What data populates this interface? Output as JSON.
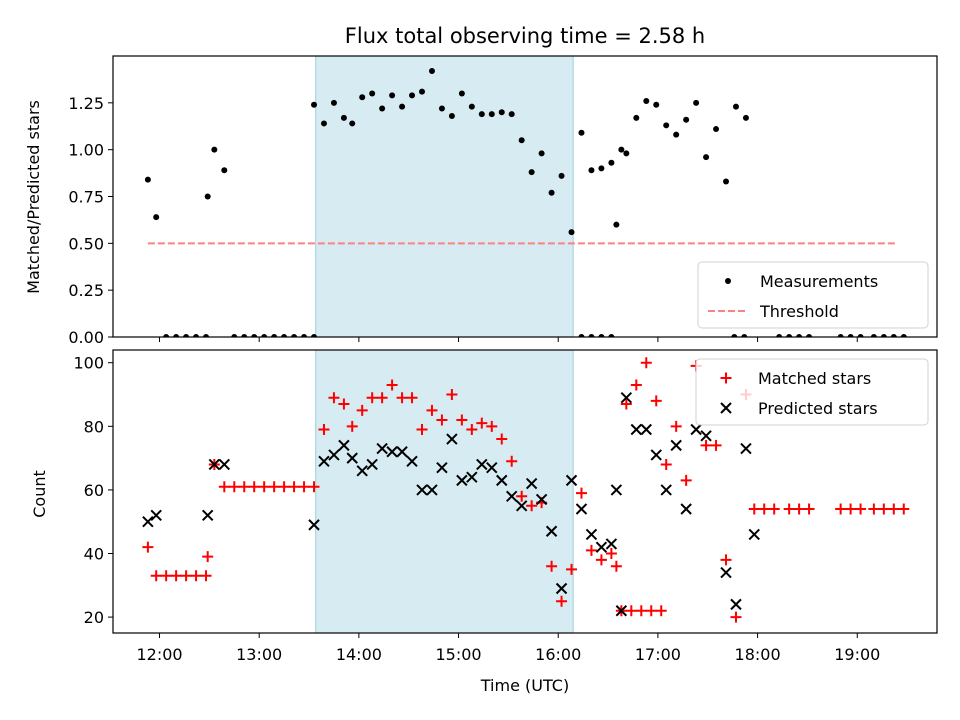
{
  "chart_data": [
    {
      "type": "scatter",
      "title": "Flux total observing time = 2.58 h",
      "xlabel": "",
      "ylabel": "Matched/Predicted stars",
      "ylim": [
        0,
        1.5
      ],
      "yticks": [
        "0.00",
        "0.25",
        "0.50",
        "0.75",
        "1.00",
        "1.25"
      ],
      "xlim": [
        "11:32",
        "19:48"
      ],
      "shaded_region": {
        "start": "13:34",
        "end": "16:09"
      },
      "legend_position": "bottom-right",
      "threshold": {
        "name": "Threshold",
        "value": 0.5,
        "x_start": "11:53",
        "x_end": "19:24",
        "color": "#ff8080",
        "style": "dashed"
      },
      "series": [
        {
          "name": "Measurements",
          "color": "#000000",
          "marker": "dot",
          "points": [
            [
              "11:53",
              0.84
            ],
            [
              "11:58",
              0.64
            ],
            [
              "12:04",
              0
            ],
            [
              "12:10",
              0
            ],
            [
              "12:16",
              0
            ],
            [
              "12:22",
              0
            ],
            [
              "12:28",
              0
            ],
            [
              "12:29",
              0.75
            ],
            [
              "12:33",
              1.0
            ],
            [
              "12:39",
              0.89
            ],
            [
              "12:45",
              0
            ],
            [
              "12:51",
              0
            ],
            [
              "12:57",
              0
            ],
            [
              "13:03",
              0
            ],
            [
              "13:09",
              0
            ],
            [
              "13:15",
              0
            ],
            [
              "13:21",
              0
            ],
            [
              "13:27",
              0
            ],
            [
              "13:33",
              0
            ],
            [
              "13:33",
              1.24
            ],
            [
              "13:39",
              1.14
            ],
            [
              "13:45",
              1.25
            ],
            [
              "13:51",
              1.17
            ],
            [
              "13:56",
              1.14
            ],
            [
              "14:02",
              1.28
            ],
            [
              "14:08",
              1.3
            ],
            [
              "14:14",
              1.22
            ],
            [
              "14:20",
              1.29
            ],
            [
              "14:26",
              1.23
            ],
            [
              "14:32",
              1.29
            ],
            [
              "14:38",
              1.31
            ],
            [
              "14:44",
              1.42
            ],
            [
              "14:50",
              1.22
            ],
            [
              "14:56",
              1.18
            ],
            [
              "15:02",
              1.3
            ],
            [
              "15:08",
              1.23
            ],
            [
              "15:14",
              1.19
            ],
            [
              "15:20",
              1.19
            ],
            [
              "15:26",
              1.2
            ],
            [
              "15:32",
              1.19
            ],
            [
              "15:38",
              1.05
            ],
            [
              "15:44",
              0.88
            ],
            [
              "15:50",
              0.98
            ],
            [
              "15:56",
              0.77
            ],
            [
              "16:02",
              0.86
            ],
            [
              "16:08",
              0.56
            ],
            [
              "16:14",
              1.09
            ],
            [
              "16:20",
              0.89
            ],
            [
              "16:26",
              0.9
            ],
            [
              "16:32",
              0.93
            ],
            [
              "16:38",
              1.0
            ],
            [
              "16:14",
              0
            ],
            [
              "16:20",
              0
            ],
            [
              "16:26",
              0
            ],
            [
              "16:32",
              0
            ],
            [
              "16:35",
              0.6
            ],
            [
              "16:41",
              0.98
            ],
            [
              "16:47",
              1.17
            ],
            [
              "16:53",
              1.26
            ],
            [
              "16:59",
              1.24
            ],
            [
              "17:05",
              1.13
            ],
            [
              "17:11",
              1.08
            ],
            [
              "17:17",
              1.16
            ],
            [
              "17:23",
              1.25
            ],
            [
              "17:29",
              0.96
            ],
            [
              "17:35",
              1.11
            ],
            [
              "17:41",
              0.83
            ],
            [
              "17:47",
              1.23
            ],
            [
              "17:53",
              1.17
            ],
            [
              "17:46",
              0
            ],
            [
              "17:52",
              0
            ],
            [
              "18:13",
              0
            ],
            [
              "18:19",
              0
            ],
            [
              "18:25",
              0
            ],
            [
              "18:31",
              0
            ],
            [
              "18:50",
              0
            ],
            [
              "18:56",
              0
            ],
            [
              "19:02",
              0
            ],
            [
              "19:10",
              0
            ],
            [
              "19:16",
              0
            ],
            [
              "19:22",
              0
            ],
            [
              "19:28",
              0
            ]
          ]
        }
      ]
    },
    {
      "type": "scatter",
      "title": "",
      "xlabel": "Time (UTC)",
      "ylabel": "Count",
      "ylim": [
        15,
        104
      ],
      "yticks": [
        "20",
        "40",
        "60",
        "80",
        "100"
      ],
      "xlim": [
        "11:32",
        "19:48"
      ],
      "xticks": [
        "12:00",
        "13:00",
        "14:00",
        "15:00",
        "16:00",
        "17:00",
        "18:00",
        "19:00"
      ],
      "shaded_region": {
        "start": "13:34",
        "end": "16:09"
      },
      "legend_position": "top-right",
      "series": [
        {
          "name": "Matched stars",
          "color": "#ff0000",
          "marker": "plus",
          "points": [
            [
              "11:53",
              42
            ],
            [
              "11:58",
              33
            ],
            [
              "12:04",
              33
            ],
            [
              "12:10",
              33
            ],
            [
              "12:16",
              33
            ],
            [
              "12:22",
              33
            ],
            [
              "12:28",
              33
            ],
            [
              "12:29",
              39
            ],
            [
              "12:33",
              68
            ],
            [
              "12:39",
              61
            ],
            [
              "12:45",
              61
            ],
            [
              "12:51",
              61
            ],
            [
              "12:57",
              61
            ],
            [
              "13:03",
              61
            ],
            [
              "13:09",
              61
            ],
            [
              "13:15",
              61
            ],
            [
              "13:21",
              61
            ],
            [
              "13:27",
              61
            ],
            [
              "13:33",
              61
            ],
            [
              "13:39",
              79
            ],
            [
              "13:45",
              89
            ],
            [
              "13:51",
              87
            ],
            [
              "13:56",
              80
            ],
            [
              "14:02",
              85
            ],
            [
              "14:08",
              89
            ],
            [
              "14:14",
              89
            ],
            [
              "14:20",
              93
            ],
            [
              "14:26",
              89
            ],
            [
              "14:32",
              89
            ],
            [
              "14:38",
              79
            ],
            [
              "14:44",
              85
            ],
            [
              "14:50",
              82
            ],
            [
              "14:56",
              90
            ],
            [
              "15:02",
              82
            ],
            [
              "15:08",
              79
            ],
            [
              "15:14",
              81
            ],
            [
              "15:20",
              80
            ],
            [
              "15:26",
              76
            ],
            [
              "15:32",
              69
            ],
            [
              "15:38",
              58
            ],
            [
              "15:44",
              55
            ],
            [
              "15:50",
              56
            ],
            [
              "15:56",
              36
            ],
            [
              "16:02",
              25
            ],
            [
              "16:08",
              35
            ],
            [
              "16:14",
              59
            ],
            [
              "16:20",
              41
            ],
            [
              "16:26",
              38
            ],
            [
              "16:32",
              40
            ],
            [
              "16:38",
              22
            ],
            [
              "16:44",
              22
            ],
            [
              "16:50",
              22
            ],
            [
              "16:56",
              22
            ],
            [
              "17:02",
              22
            ],
            [
              "16:35",
              36
            ],
            [
              "16:41",
              87
            ],
            [
              "16:47",
              93
            ],
            [
              "16:53",
              100
            ],
            [
              "16:59",
              88
            ],
            [
              "17:05",
              68
            ],
            [
              "17:11",
              80
            ],
            [
              "17:17",
              63
            ],
            [
              "17:23",
              99
            ],
            [
              "17:29",
              74
            ],
            [
              "17:35",
              74
            ],
            [
              "17:41",
              38
            ],
            [
              "17:47",
              20
            ],
            [
              "17:53",
              90
            ],
            [
              "17:58",
              54
            ],
            [
              "18:04",
              54
            ],
            [
              "18:10",
              54
            ],
            [
              "18:19",
              54
            ],
            [
              "18:25",
              54
            ],
            [
              "18:31",
              54
            ],
            [
              "18:50",
              54
            ],
            [
              "18:56",
              54
            ],
            [
              "19:02",
              54
            ],
            [
              "19:10",
              54
            ],
            [
              "19:16",
              54
            ],
            [
              "19:22",
              54
            ],
            [
              "19:28",
              54
            ]
          ]
        },
        {
          "name": "Predicted stars",
          "color": "#000000",
          "marker": "x",
          "points": [
            [
              "11:53",
              50
            ],
            [
              "11:58",
              52
            ],
            [
              "12:29",
              52
            ],
            [
              "12:33",
              68
            ],
            [
              "12:39",
              68
            ],
            [
              "13:33",
              49
            ],
            [
              "13:39",
              69
            ],
            [
              "13:45",
              71
            ],
            [
              "13:51",
              74
            ],
            [
              "13:56",
              70
            ],
            [
              "14:02",
              66
            ],
            [
              "14:08",
              68
            ],
            [
              "14:14",
              73
            ],
            [
              "14:20",
              72
            ],
            [
              "14:26",
              72
            ],
            [
              "14:32",
              69
            ],
            [
              "14:38",
              60
            ],
            [
              "14:44",
              60
            ],
            [
              "14:50",
              67
            ],
            [
              "14:56",
              76
            ],
            [
              "15:02",
              63
            ],
            [
              "15:08",
              64
            ],
            [
              "15:14",
              68
            ],
            [
              "15:20",
              67
            ],
            [
              "15:26",
              63
            ],
            [
              "15:32",
              58
            ],
            [
              "15:38",
              55
            ],
            [
              "15:44",
              62
            ],
            [
              "15:50",
              57
            ],
            [
              "15:56",
              47
            ],
            [
              "16:02",
              29
            ],
            [
              "16:08",
              63
            ],
            [
              "16:14",
              54
            ],
            [
              "16:20",
              46
            ],
            [
              "16:26",
              42
            ],
            [
              "16:32",
              43
            ],
            [
              "16:38",
              22
            ],
            [
              "16:35",
              60
            ],
            [
              "16:41",
              89
            ],
            [
              "16:47",
              79
            ],
            [
              "16:53",
              79
            ],
            [
              "16:59",
              71
            ],
            [
              "17:05",
              60
            ],
            [
              "17:11",
              74
            ],
            [
              "17:17",
              54
            ],
            [
              "17:23",
              79
            ],
            [
              "17:29",
              77
            ],
            [
              "17:41",
              34
            ],
            [
              "17:47",
              24
            ],
            [
              "17:53",
              73
            ],
            [
              "17:58",
              46
            ]
          ]
        }
      ]
    }
  ]
}
